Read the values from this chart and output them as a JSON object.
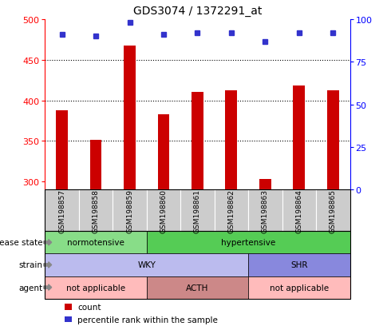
{
  "title": "GDS3074 / 1372291_at",
  "samples": [
    "GSM198857",
    "GSM198858",
    "GSM198859",
    "GSM198860",
    "GSM198861",
    "GSM198862",
    "GSM198863",
    "GSM198864",
    "GSM198865"
  ],
  "counts": [
    388,
    351,
    467,
    383,
    410,
    412,
    303,
    418,
    412
  ],
  "percentiles": [
    91,
    90,
    98,
    91,
    92,
    92,
    87,
    92,
    92
  ],
  "ylim_left": [
    290,
    500
  ],
  "ylim_right": [
    0,
    100
  ],
  "yticks_left": [
    300,
    350,
    400,
    450,
    500
  ],
  "yticks_right": [
    0,
    25,
    50,
    75,
    100
  ],
  "bar_color": "#cc0000",
  "dot_color": "#3333cc",
  "bar_bottom": 290,
  "dotted_lines": [
    350,
    400,
    450
  ],
  "annotation_rows": [
    {
      "label": "disease state",
      "segments": [
        {
          "text": "normotensive",
          "start": 0,
          "end": 3,
          "color": "#88dd88"
        },
        {
          "text": "hypertensive",
          "start": 3,
          "end": 9,
          "color": "#55cc55"
        }
      ]
    },
    {
      "label": "strain",
      "segments": [
        {
          "text": "WKY",
          "start": 0,
          "end": 6,
          "color": "#bbbbee"
        },
        {
          "text": "SHR",
          "start": 6,
          "end": 9,
          "color": "#8888dd"
        }
      ]
    },
    {
      "label": "agent",
      "segments": [
        {
          "text": "not applicable",
          "start": 0,
          "end": 3,
          "color": "#ffbbbb"
        },
        {
          "text": "ACTH",
          "start": 3,
          "end": 6,
          "color": "#cc8888"
        },
        {
          "text": "not applicable",
          "start": 6,
          "end": 9,
          "color": "#ffbbbb"
        }
      ]
    }
  ],
  "legend_items": [
    {
      "color": "#cc0000",
      "label": "count"
    },
    {
      "color": "#3333cc",
      "label": "percentile rank within the sample"
    }
  ],
  "sample_box_color": "#cccccc",
  "border_color": "#000000"
}
